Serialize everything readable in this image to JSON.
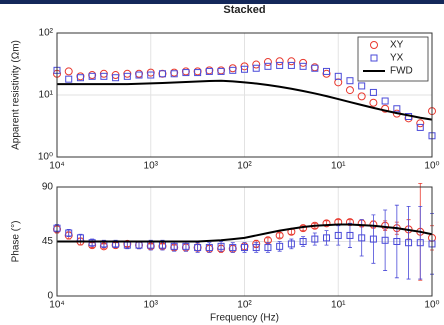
{
  "chart_data": [
    {
      "type": "line",
      "title": "Stacked",
      "ylabel": "Apparent resistivity (Ωm)",
      "xlog": true,
      "ylog": true,
      "grid": true,
      "legend": "upper right",
      "xlim": [
        10000,
        1
      ],
      "ylim": [
        1,
        100
      ],
      "xticks": [
        {
          "value": 10000,
          "label": "10⁴"
        },
        {
          "value": 1000,
          "label": "10³"
        },
        {
          "value": 100,
          "label": "10²"
        },
        {
          "value": 10,
          "label": "10¹"
        },
        {
          "value": 1,
          "label": "10⁰"
        }
      ],
      "yticks": [
        {
          "value": 1,
          "label": "10⁰"
        },
        {
          "value": 10,
          "label": "10¹"
        },
        {
          "value": 100,
          "label": "10²"
        }
      ],
      "x": [
        10000,
        7499,
        5623,
        4217,
        3162,
        2371,
        1778,
        1334,
        1000,
        749.9,
        562.3,
        421.7,
        316.2,
        237.1,
        177.8,
        133.4,
        100,
        74.99,
        56.23,
        42.17,
        31.62,
        23.71,
        17.78,
        13.34,
        10,
        7.499,
        5.623,
        4.217,
        3.162,
        2.371,
        1.778,
        1.334,
        1
      ],
      "series": [
        {
          "name": "XY",
          "color": "#e8392f",
          "marker": "circle",
          "values": [
            22,
            24,
            20,
            21,
            22,
            21,
            22,
            22,
            23,
            22,
            23,
            24,
            24,
            25,
            25,
            27,
            29,
            31,
            34,
            35,
            35,
            33,
            28,
            22,
            16,
            12,
            9.5,
            7.5,
            6,
            5,
            4.2,
            3.5,
            5.5
          ]
        },
        {
          "name": "YX",
          "color": "#4a4ad8",
          "marker": "square",
          "values": [
            25,
            18,
            19,
            20,
            20,
            19,
            20,
            21,
            21,
            22,
            22,
            23,
            23,
            24,
            24,
            25,
            26,
            27,
            29,
            30,
            30,
            29,
            27,
            24,
            20,
            17,
            14,
            11,
            8,
            6,
            4.5,
            3,
            2.2
          ]
        },
        {
          "name": "FWD",
          "color": "#000000",
          "values": [
            15,
            15,
            15,
            15,
            15,
            15,
            15,
            15.2,
            15.4,
            15.6,
            15.9,
            16.2,
            16.5,
            16.8,
            17,
            16.6,
            16,
            15.3,
            14.5,
            13.6,
            12.6,
            11.6,
            10.6,
            9.6,
            8.6,
            7.7,
            6.9,
            6.2,
            5.6,
            5.1,
            4.7,
            4.3,
            4.0
          ]
        }
      ]
    },
    {
      "type": "line",
      "ylabel": "Phase (°)",
      "xlabel": "Frequency (Hz)",
      "xlog": true,
      "grid": true,
      "xlim": [
        10000,
        1
      ],
      "ylim": [
        0,
        90
      ],
      "xticks": [
        {
          "value": 10000,
          "label": "10⁴"
        },
        {
          "value": 1000,
          "label": "10³"
        },
        {
          "value": 100,
          "label": "10²"
        },
        {
          "value": 10,
          "label": "10¹"
        },
        {
          "value": 1,
          "label": "10⁰"
        }
      ],
      "yticks": [
        0,
        45,
        90
      ],
      "x": [
        10000,
        7499,
        5623,
        4217,
        3162,
        2371,
        1778,
        1334,
        1000,
        749.9,
        562.3,
        421.7,
        316.2,
        237.1,
        177.8,
        133.4,
        100,
        74.99,
        56.23,
        42.17,
        31.62,
        23.71,
        17.78,
        13.34,
        10,
        7.499,
        5.623,
        4.217,
        3.162,
        2.371,
        1.778,
        1.334,
        1
      ],
      "series": [
        {
          "name": "XY",
          "color": "#e8392f",
          "marker": "circle",
          "values": [
            55,
            50,
            45,
            42,
            41,
            42,
            43,
            42,
            41,
            41,
            40,
            40,
            40,
            39,
            39,
            39,
            41,
            43,
            46,
            50,
            53,
            56,
            58,
            60,
            61,
            61,
            60,
            59,
            58,
            56,
            55,
            53,
            48
          ],
          "errors": [
            3,
            3,
            3,
            2,
            2,
            2,
            2,
            3,
            2,
            2,
            2,
            3,
            3,
            3,
            3,
            3,
            3,
            3,
            2,
            2,
            2,
            2,
            2,
            2,
            2,
            2,
            3,
            3,
            4,
            5,
            8,
            40,
            10
          ]
        },
        {
          "name": "YX",
          "color": "#4a4ad8",
          "marker": "square",
          "values": [
            56,
            52,
            48,
            44,
            43,
            43,
            42,
            42,
            42,
            42,
            41,
            41,
            40,
            40,
            41,
            40,
            40,
            40,
            40,
            41,
            43,
            45,
            47,
            48,
            50,
            50,
            48,
            47,
            46,
            45,
            44,
            44,
            43
          ],
          "errors": [
            3,
            3,
            3,
            3,
            3,
            3,
            3,
            3,
            4,
            4,
            4,
            4,
            4,
            4,
            4,
            4,
            4,
            4,
            4,
            4,
            4,
            4,
            5,
            6,
            8,
            10,
            15,
            20,
            25,
            30,
            30,
            30,
            25
          ]
        },
        {
          "name": "FWD",
          "color": "#000000",
          "values": [
            45,
            45,
            45,
            45,
            45,
            45,
            45,
            45,
            45,
            45,
            45,
            45,
            45,
            45.5,
            46,
            47,
            48,
            50,
            52,
            54,
            55.5,
            57,
            58,
            58.5,
            59,
            59,
            58.5,
            58,
            57,
            56,
            54.5,
            53,
            51
          ]
        }
      ]
    }
  ]
}
